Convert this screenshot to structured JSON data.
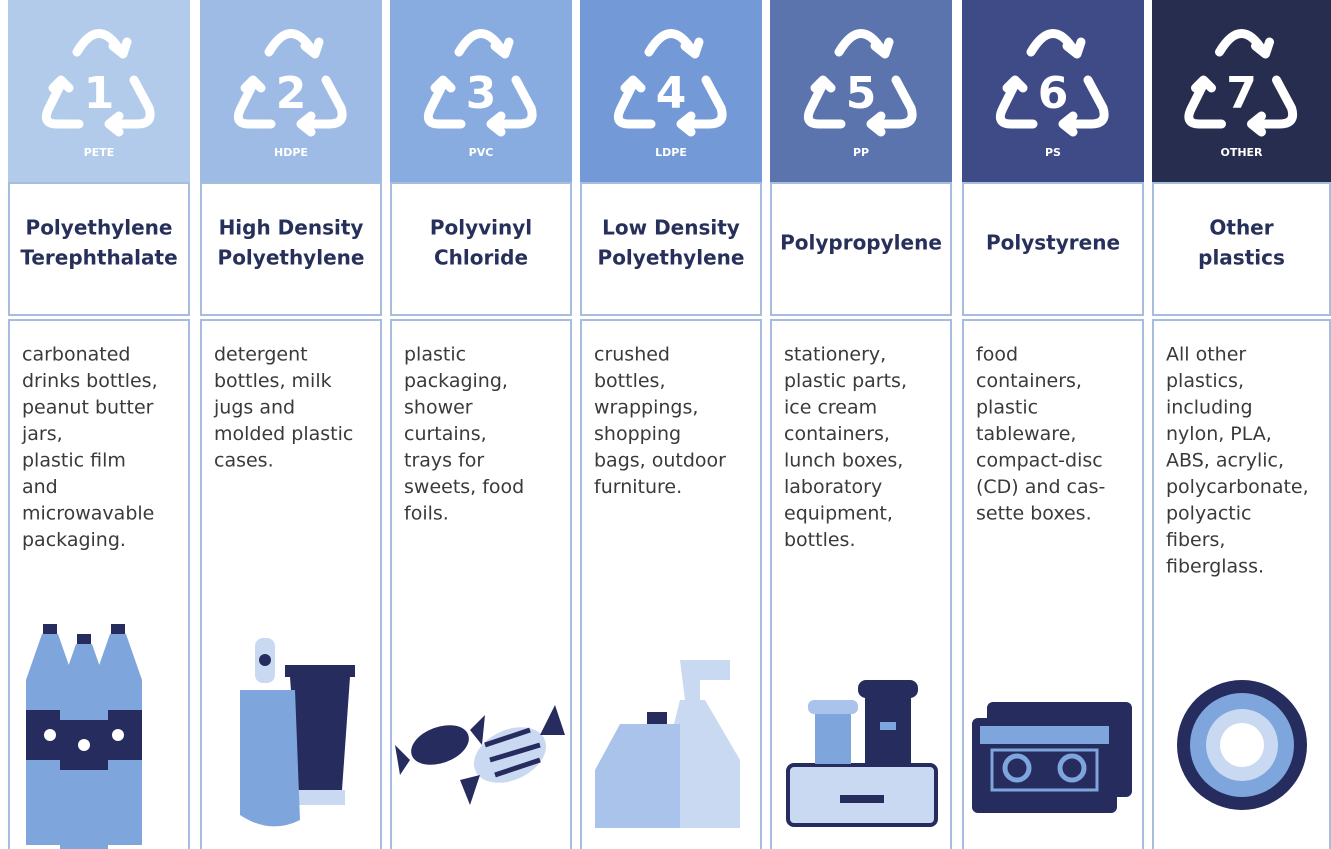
{
  "columns": [
    {
      "number": "1",
      "code": "PETE",
      "name": [
        "Polyethylene",
        "Terephthalate"
      ],
      "description": [
        "carbonated",
        "drinks bottles,",
        "peanut butter",
        "jars,",
        "plastic film",
        "and",
        "microwavable",
        "packaging."
      ]
    },
    {
      "number": "2",
      "code": "HDPE",
      "name": [
        "High Density",
        "Polyethylene"
      ],
      "description": [
        "detergent",
        "bottles, milk",
        "jugs and",
        "molded plastic",
        "cases."
      ]
    },
    {
      "number": "3",
      "code": "PVC",
      "name": [
        "Polyvinyl",
        "Chloride"
      ],
      "description": [
        "plastic",
        "packaging,",
        "shower",
        "curtains,",
        "trays for",
        "sweets, food",
        "foils."
      ]
    },
    {
      "number": "4",
      "code": "LDPE",
      "name": [
        "Low Density",
        "Polyethylene"
      ],
      "description": [
        "crushed",
        "bottles,",
        "wrappings,",
        "shopping",
        "bags, outdoor",
        "furniture."
      ]
    },
    {
      "number": "5",
      "code": "PP",
      "name": [
        "Polypropylene"
      ],
      "description": [
        "stationery,",
        "plastic parts,",
        "ice cream",
        "containers,",
        "lunch boxes,",
        "laboratory",
        "equipment,",
        "bottles."
      ]
    },
    {
      "number": "6",
      "code": "PS",
      "name": [
        "Polystyrene"
      ],
      "description": [
        "food",
        "containers,",
        "plastic",
        "tableware,",
        "compact-disc",
        "(CD) and cas-",
        "sette boxes."
      ]
    },
    {
      "number": "7",
      "code": "OTHER",
      "name": [
        "Other",
        "plastics"
      ],
      "description": [
        "All other",
        "plastics,",
        "including",
        "nylon, PLA,",
        "ABS, acrylic,",
        "polycarbonate,",
        "polyactic",
        "fibers,",
        "fiberglass."
      ]
    }
  ]
}
